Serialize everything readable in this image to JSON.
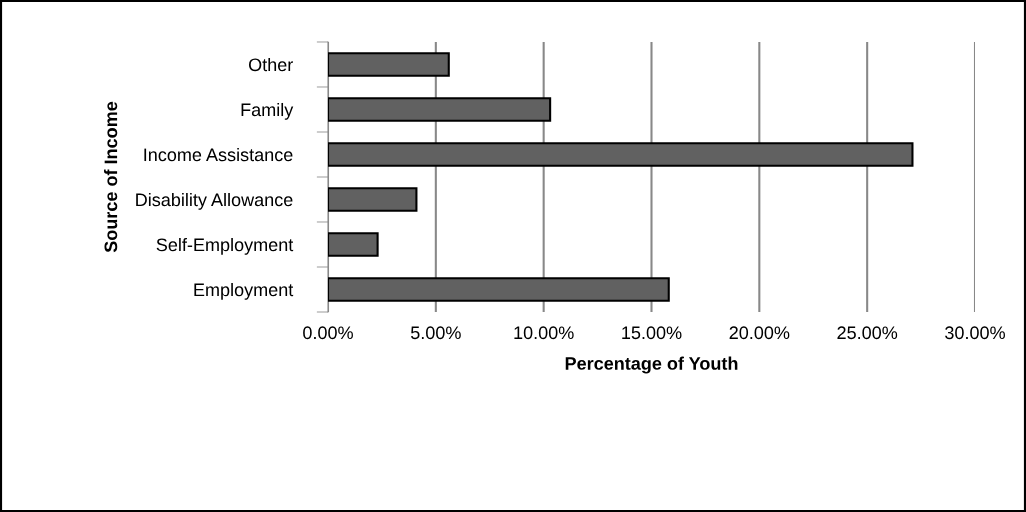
{
  "chart_data": {
    "type": "bar",
    "orientation": "horizontal",
    "xlabel": "Percentage of Youth",
    "ylabel": "Source of Income",
    "categories": [
      "Other",
      "Family",
      "Income Assistance",
      "Disability Allowance",
      "Self-Employment",
      "Employment"
    ],
    "values": [
      5.6,
      10.3,
      27.1,
      4.1,
      2.3,
      15.8
    ],
    "color": "#616161",
    "xlim": [
      0,
      30
    ],
    "xticks": [
      {
        "value": 0,
        "label": "0.00%"
      },
      {
        "value": 5,
        "label": "5.00%"
      },
      {
        "value": 10,
        "label": "10.00%"
      },
      {
        "value": 15,
        "label": "15.00%"
      },
      {
        "value": 20,
        "label": "20.00%"
      },
      {
        "value": 25,
        "label": "25.00%"
      },
      {
        "value": 30,
        "label": "30.00%"
      }
    ],
    "grid": "x",
    "legend": false
  }
}
